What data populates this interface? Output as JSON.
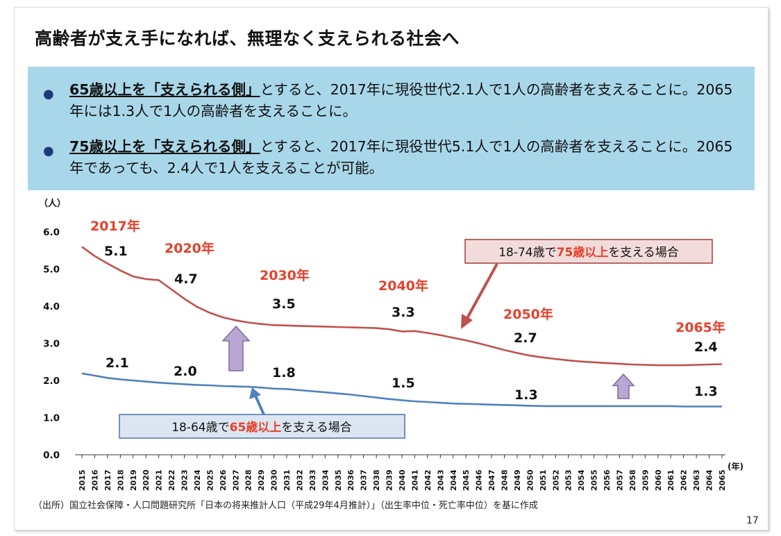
{
  "title": "高齢者が支え手になれば、無理なく支えられる社会へ",
  "bullets": [
    {
      "emphasis": "65歳以上を「支えられる側」",
      "rest": "とすると、2017年に現役世代2.1人で1人の高齢者を支えることに。2065年には1.3人で1人の高齢者を支えることに。"
    },
    {
      "emphasis": "75歳以上を「支えられる側」",
      "rest": "とすると、2017年に現役世代5.1人で1人の高齢者を支えることに。2065年であっても、2.4人で1人を支えることが可能。"
    }
  ],
  "source": "（出所）国立社会保障・人口問題研究所「日本の将来推計人口（平成29年4月推計）」（出生率中位・死亡率中位）を基に作成",
  "page_number": "17",
  "colors": {
    "series_75": "#c0504d",
    "series_65": "#4f81bd",
    "year_label": "#e8402a",
    "arrow_fill": "#b9a6d3",
    "arrow_stroke": "#7a6a98",
    "box_75_fill": "#f2dcdb",
    "box_65_fill": "#dce6f2"
  },
  "chart_data": {
    "type": "line",
    "ylabel": "（人）",
    "xlabel": "(年)",
    "ylim": [
      0,
      6
    ],
    "yticks": [
      "0.0",
      "1.0",
      "2.0",
      "3.0",
      "4.0",
      "5.0",
      "6.0"
    ],
    "x": [
      2015,
      2016,
      2017,
      2018,
      2019,
      2020,
      2021,
      2022,
      2023,
      2024,
      2025,
      2026,
      2027,
      2028,
      2029,
      2030,
      2031,
      2032,
      2033,
      2034,
      2035,
      2036,
      2037,
      2038,
      2039,
      2040,
      2041,
      2042,
      2043,
      2044,
      2045,
      2046,
      2047,
      2048,
      2049,
      2050,
      2051,
      2052,
      2053,
      2054,
      2055,
      2056,
      2057,
      2058,
      2059,
      2060,
      2061,
      2062,
      2063,
      2064,
      2065
    ],
    "series": [
      {
        "name": "18-74歳で75歳以上を支える場合",
        "values": [
          5.6,
          5.35,
          5.15,
          4.96,
          4.8,
          4.73,
          4.7,
          4.45,
          4.2,
          3.98,
          3.82,
          3.7,
          3.62,
          3.56,
          3.52,
          3.49,
          3.48,
          3.47,
          3.46,
          3.45,
          3.44,
          3.43,
          3.42,
          3.41,
          3.38,
          3.32,
          3.33,
          3.28,
          3.22,
          3.15,
          3.08,
          3.0,
          2.91,
          2.82,
          2.74,
          2.67,
          2.62,
          2.58,
          2.54,
          2.51,
          2.49,
          2.47,
          2.45,
          2.43,
          2.42,
          2.41,
          2.41,
          2.41,
          2.42,
          2.43,
          2.44
        ]
      },
      {
        "name": "18-64歳で65歳以上を支える場合",
        "values": [
          2.19,
          2.13,
          2.07,
          2.03,
          2.0,
          1.97,
          1.94,
          1.92,
          1.9,
          1.88,
          1.87,
          1.85,
          1.84,
          1.83,
          1.81,
          1.78,
          1.77,
          1.74,
          1.71,
          1.68,
          1.65,
          1.62,
          1.58,
          1.54,
          1.5,
          1.47,
          1.44,
          1.42,
          1.4,
          1.38,
          1.37,
          1.36,
          1.35,
          1.34,
          1.33,
          1.32,
          1.31,
          1.31,
          1.31,
          1.31,
          1.31,
          1.31,
          1.31,
          1.31,
          1.31,
          1.31,
          1.31,
          1.3,
          1.3,
          1.3,
          1.3
        ]
      }
    ],
    "year_labels": [
      "2017年",
      "2020年",
      "2030年",
      "2040年",
      "2050年",
      "2065年"
    ],
    "value_labels_75": [
      "5.1",
      "4.7",
      "3.5",
      "3.3",
      "2.7",
      "2.4"
    ],
    "value_labels_65": [
      "2.1",
      "2.0",
      "1.8",
      "1.5",
      "1.3",
      "1.3"
    ],
    "box_75": {
      "prefix": "18-74歳で",
      "emphasis": "75歳以上",
      "suffix": "を支える場合"
    },
    "box_65": {
      "prefix": "18-64歳で",
      "emphasis": "65歳以上",
      "suffix": "を支える場合"
    }
  }
}
